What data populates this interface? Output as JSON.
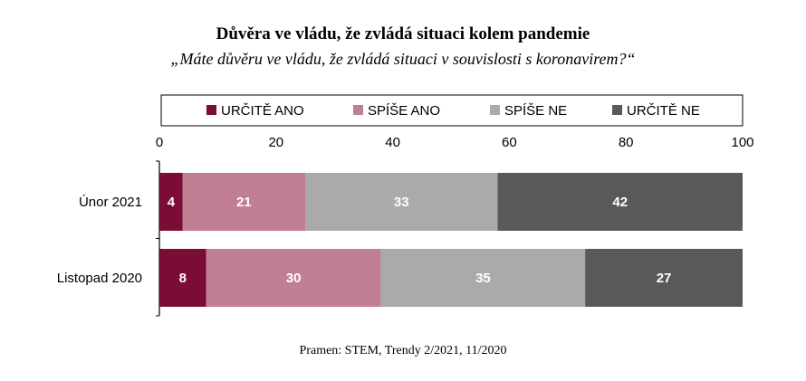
{
  "title": "Důvěra ve vládu, že zvládá situaci kolem pandemie",
  "subtitle": "„Máte důvěru ve vládu, že zvládá situaci v souvislosti s koronavirem?“",
  "source": "Pramen: STEM, Trendy 2/2021, 11/2020",
  "chart_data": {
    "type": "bar",
    "orientation": "horizontal",
    "stacked": true,
    "categories": [
      "Únor 2021",
      "Listopad 2020"
    ],
    "series": [
      {
        "name": "URČITĚ ANO",
        "color": "#7b0c35",
        "values": [
          4,
          8
        ]
      },
      {
        "name": "SPÍŠE ANO",
        "color": "#c17f94",
        "values": [
          21,
          30
        ]
      },
      {
        "name": "SPÍŠE NE",
        "color": "#aaaaaa",
        "values": [
          33,
          35
        ]
      },
      {
        "name": "URČITĚ NE",
        "color": "#595959",
        "values": [
          42,
          27
        ]
      }
    ],
    "xlim": [
      0,
      100
    ],
    "xticks": [
      "0",
      "20",
      "40",
      "60",
      "80",
      "100"
    ],
    "legend_position": "top",
    "grid": false
  }
}
